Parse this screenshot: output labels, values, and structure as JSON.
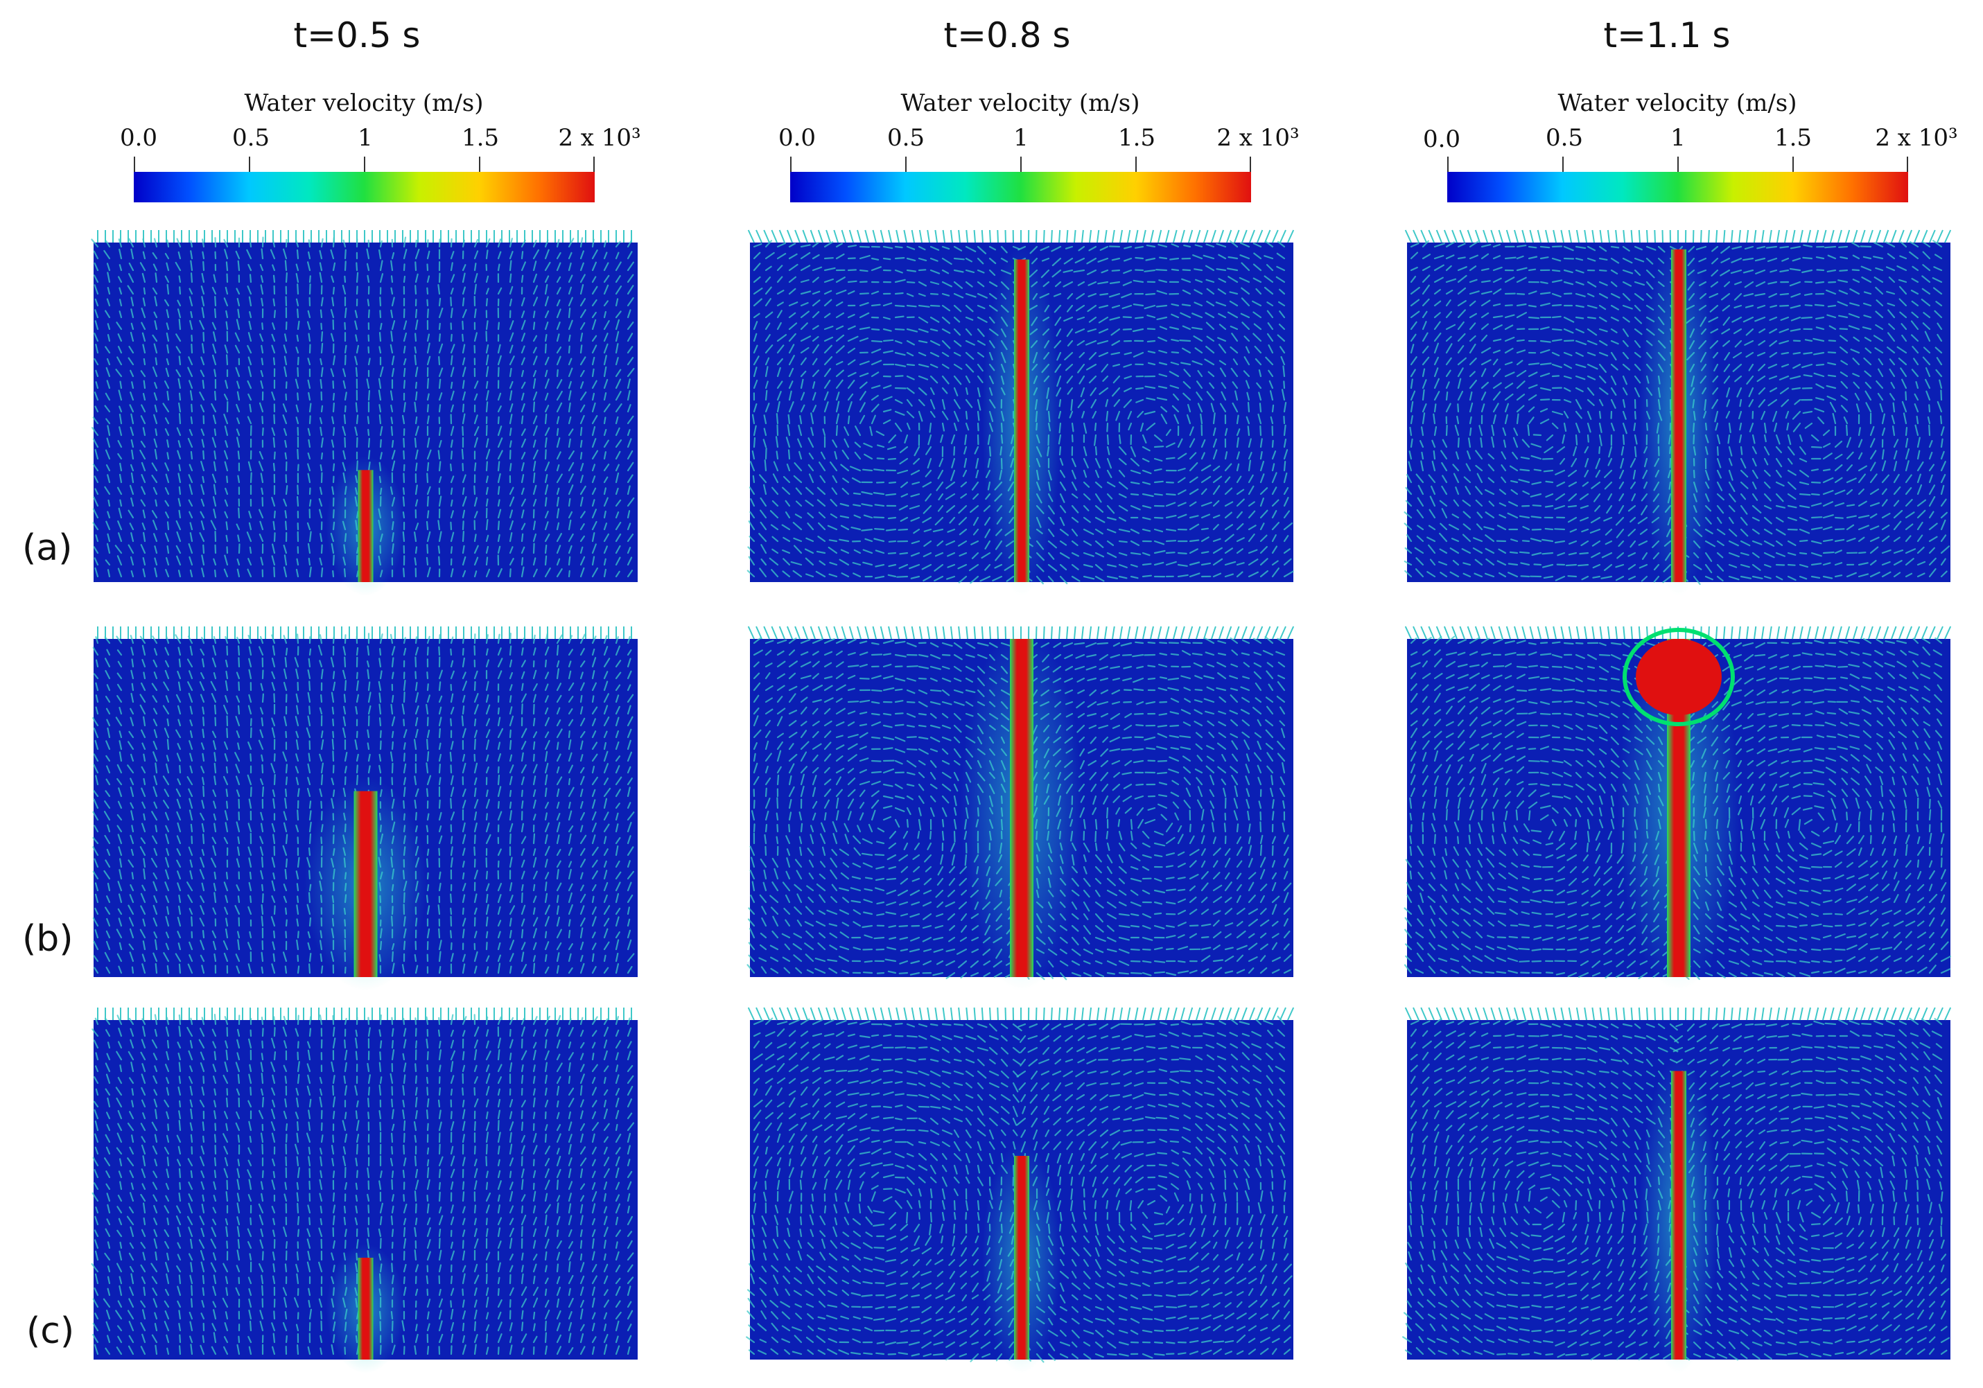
{
  "figure": {
    "columns": [
      {
        "title": "t=0.5 s"
      },
      {
        "title": "t=0.8 s"
      },
      {
        "title": "t=1.1 s"
      }
    ],
    "rows": [
      {
        "label": "(a)"
      },
      {
        "label": "(b)"
      },
      {
        "label": "(c)"
      }
    ],
    "colorbar": {
      "title": "Water velocity (m/s)",
      "ticks": [
        "0.0",
        "0.5",
        "1",
        "1.5",
        "2 x 10³"
      ],
      "colormap": [
        "#0000c8",
        "#0050ff",
        "#00c8ff",
        "#00e8c0",
        "#20e040",
        "#c8f000",
        "#ffd000",
        "#ff7000",
        "#e01010"
      ]
    },
    "colors": {
      "background_field": "#0b1fb4",
      "vector": "#3ec8c8",
      "jet_core": "#e01010",
      "jet_edge": "#00e070"
    },
    "panels": [
      {
        "id": "a-0.5",
        "jet_height": 0.33,
        "plume": false
      },
      {
        "id": "a-0.8",
        "jet_height": 0.95,
        "plume": false
      },
      {
        "id": "a-1.1",
        "jet_height": 0.98,
        "plume": false
      },
      {
        "id": "b-0.5",
        "jet_height": 0.55,
        "plume": false
      },
      {
        "id": "b-0.8",
        "jet_height": 1.0,
        "plume": false
      },
      {
        "id": "b-1.1",
        "jet_height": 1.0,
        "plume": true
      },
      {
        "id": "c-0.5",
        "jet_height": 0.3,
        "plume": false
      },
      {
        "id": "c-0.8",
        "jet_height": 0.6,
        "plume": false
      },
      {
        "id": "c-1.1",
        "jet_height": 0.85,
        "plume": false
      }
    ]
  }
}
